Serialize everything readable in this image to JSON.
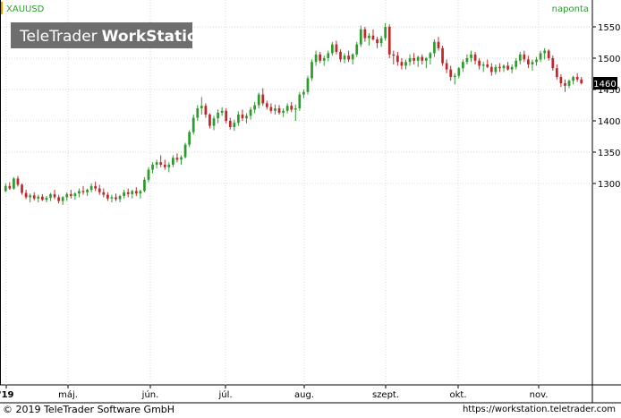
{
  "symbol": "XAUUSD",
  "period": "naponta",
  "logo": {
    "part1": "TeleTrader",
    "part2": "WorkStation"
  },
  "last_price_label": "1460",
  "footer": {
    "copyright": "© 2019 TeleTrader Software GmbH",
    "url": "https://workstation.teletrader.com"
  },
  "colors": {
    "up": "#2e9b2e",
    "down": "#c0282c",
    "accent": "#f0a500",
    "period": "#2e9b2e"
  },
  "chart_data": {
    "type": "candlestick",
    "ylim": [
      1265,
      1560
    ],
    "yticks": [
      1300,
      1350,
      1400,
      1450,
      1500,
      1550
    ],
    "xticks": [
      "'19",
      "máj.",
      "jún.",
      "júl.",
      "aug.",
      "szept.",
      "okt.",
      "nov."
    ],
    "ohlc": [
      [
        1288,
        1300,
        1286,
        1296
      ],
      [
        1296,
        1302,
        1290,
        1292
      ],
      [
        1292,
        1310,
        1290,
        1308
      ],
      [
        1308,
        1312,
        1295,
        1298
      ],
      [
        1298,
        1300,
        1282,
        1285
      ],
      [
        1285,
        1290,
        1275,
        1278
      ],
      [
        1278,
        1284,
        1270,
        1281
      ],
      [
        1281,
        1286,
        1273,
        1276
      ],
      [
        1276,
        1282,
        1270,
        1279
      ],
      [
        1279,
        1283,
        1272,
        1274
      ],
      [
        1274,
        1280,
        1270,
        1277
      ],
      [
        1277,
        1285,
        1272,
        1283
      ],
      [
        1283,
        1290,
        1275,
        1278
      ],
      [
        1278,
        1282,
        1268,
        1272
      ],
      [
        1272,
        1280,
        1266,
        1278
      ],
      [
        1278,
        1286,
        1272,
        1283
      ],
      [
        1283,
        1290,
        1276,
        1280
      ],
      [
        1280,
        1286,
        1274,
        1284
      ],
      [
        1284,
        1292,
        1278,
        1288
      ],
      [
        1288,
        1296,
        1282,
        1286
      ],
      [
        1286,
        1292,
        1280,
        1290
      ],
      [
        1290,
        1300,
        1286,
        1296
      ],
      [
        1296,
        1303,
        1288,
        1292
      ],
      [
        1292,
        1298,
        1282,
        1286
      ],
      [
        1286,
        1292,
        1278,
        1282
      ],
      [
        1282,
        1286,
        1272,
        1276
      ],
      [
        1276,
        1282,
        1270,
        1278
      ],
      [
        1278,
        1284,
        1272,
        1275
      ],
      [
        1275,
        1282,
        1270,
        1280
      ],
      [
        1280,
        1290,
        1276,
        1286
      ],
      [
        1286,
        1292,
        1278,
        1283
      ],
      [
        1283,
        1290,
        1276,
        1288
      ],
      [
        1288,
        1294,
        1280,
        1284
      ],
      [
        1284,
        1290,
        1276,
        1288
      ],
      [
        1288,
        1310,
        1286,
        1306
      ],
      [
        1306,
        1326,
        1302,
        1322
      ],
      [
        1322,
        1334,
        1316,
        1330
      ],
      [
        1330,
        1338,
        1324,
        1334
      ],
      [
        1334,
        1345,
        1326,
        1330
      ],
      [
        1330,
        1338,
        1322,
        1326
      ],
      [
        1326,
        1334,
        1318,
        1330
      ],
      [
        1330,
        1345,
        1326,
        1341
      ],
      [
        1341,
        1348,
        1334,
        1338
      ],
      [
        1338,
        1345,
        1330,
        1342
      ],
      [
        1342,
        1365,
        1340,
        1362
      ],
      [
        1362,
        1385,
        1358,
        1382
      ],
      [
        1382,
        1410,
        1378,
        1405
      ],
      [
        1405,
        1425,
        1400,
        1420
      ],
      [
        1420,
        1438,
        1410,
        1424
      ],
      [
        1424,
        1428,
        1405,
        1410
      ],
      [
        1410,
        1412,
        1388,
        1392
      ],
      [
        1392,
        1408,
        1385,
        1404
      ],
      [
        1404,
        1418,
        1396,
        1413
      ],
      [
        1413,
        1422,
        1408,
        1416
      ],
      [
        1416,
        1420,
        1396,
        1400
      ],
      [
        1400,
        1405,
        1386,
        1390
      ],
      [
        1390,
        1402,
        1384,
        1397
      ],
      [
        1397,
        1415,
        1392,
        1410
      ],
      [
        1410,
        1418,
        1400,
        1404
      ],
      [
        1404,
        1412,
        1396,
        1408
      ],
      [
        1408,
        1422,
        1402,
        1418
      ],
      [
        1418,
        1430,
        1412,
        1425
      ],
      [
        1425,
        1445,
        1420,
        1442
      ],
      [
        1442,
        1452,
        1424,
        1428
      ],
      [
        1428,
        1432,
        1418,
        1422
      ],
      [
        1422,
        1428,
        1412,
        1416
      ],
      [
        1416,
        1426,
        1410,
        1420
      ],
      [
        1420,
        1425,
        1410,
        1413
      ],
      [
        1413,
        1420,
        1406,
        1416
      ],
      [
        1416,
        1428,
        1412,
        1424
      ],
      [
        1424,
        1430,
        1414,
        1418
      ],
      [
        1418,
        1426,
        1400,
        1420
      ],
      [
        1420,
        1446,
        1416,
        1442
      ],
      [
        1442,
        1450,
        1436,
        1446
      ],
      [
        1446,
        1472,
        1442,
        1468
      ],
      [
        1468,
        1498,
        1464,
        1494
      ],
      [
        1494,
        1512,
        1488,
        1506
      ],
      [
        1506,
        1510,
        1492,
        1496
      ],
      [
        1496,
        1504,
        1488,
        1500
      ],
      [
        1500,
        1512,
        1495,
        1508
      ],
      [
        1508,
        1526,
        1504,
        1522
      ],
      [
        1522,
        1528,
        1506,
        1510
      ],
      [
        1510,
        1514,
        1494,
        1498
      ],
      [
        1498,
        1508,
        1492,
        1504
      ],
      [
        1504,
        1512,
        1494,
        1498
      ],
      [
        1498,
        1508,
        1490,
        1506
      ],
      [
        1506,
        1526,
        1502,
        1522
      ],
      [
        1522,
        1552,
        1518,
        1546
      ],
      [
        1546,
        1550,
        1526,
        1532
      ],
      [
        1532,
        1540,
        1520,
        1536
      ],
      [
        1536,
        1546,
        1528,
        1530
      ],
      [
        1530,
        1534,
        1516,
        1524
      ],
      [
        1524,
        1536,
        1518,
        1532
      ],
      [
        1532,
        1556,
        1528,
        1550
      ],
      [
        1550,
        1554,
        1500,
        1506
      ],
      [
        1506,
        1512,
        1490,
        1504
      ],
      [
        1504,
        1510,
        1488,
        1494
      ],
      [
        1494,
        1500,
        1482,
        1488
      ],
      [
        1488,
        1498,
        1482,
        1494
      ],
      [
        1494,
        1506,
        1488,
        1500
      ],
      [
        1500,
        1508,
        1490,
        1496
      ],
      [
        1496,
        1504,
        1486,
        1502
      ],
      [
        1502,
        1506,
        1490,
        1496
      ],
      [
        1496,
        1502,
        1484,
        1500
      ],
      [
        1500,
        1510,
        1490,
        1508
      ],
      [
        1508,
        1530,
        1502,
        1526
      ],
      [
        1526,
        1534,
        1512,
        1516
      ],
      [
        1516,
        1520,
        1488,
        1492
      ],
      [
        1492,
        1498,
        1476,
        1482
      ],
      [
        1482,
        1488,
        1464,
        1470
      ],
      [
        1470,
        1476,
        1458,
        1472
      ],
      [
        1472,
        1486,
        1468,
        1484
      ],
      [
        1484,
        1498,
        1478,
        1494
      ],
      [
        1494,
        1506,
        1490,
        1500
      ],
      [
        1500,
        1512,
        1494,
        1506
      ],
      [
        1506,
        1510,
        1490,
        1496
      ],
      [
        1496,
        1500,
        1482,
        1488
      ],
      [
        1488,
        1494,
        1478,
        1490
      ],
      [
        1490,
        1498,
        1484,
        1486
      ],
      [
        1486,
        1492,
        1472,
        1478
      ],
      [
        1478,
        1490,
        1474,
        1486
      ],
      [
        1486,
        1492,
        1478,
        1484
      ],
      [
        1484,
        1490,
        1478,
        1488
      ],
      [
        1488,
        1494,
        1480,
        1482
      ],
      [
        1482,
        1490,
        1476,
        1486
      ],
      [
        1486,
        1500,
        1482,
        1496
      ],
      [
        1496,
        1510,
        1490,
        1506
      ],
      [
        1506,
        1512,
        1494,
        1498
      ],
      [
        1498,
        1504,
        1484,
        1490
      ],
      [
        1490,
        1498,
        1480,
        1494
      ],
      [
        1494,
        1502,
        1488,
        1498
      ],
      [
        1498,
        1512,
        1494,
        1508
      ],
      [
        1508,
        1516,
        1498,
        1512
      ],
      [
        1512,
        1514,
        1496,
        1500
      ],
      [
        1500,
        1504,
        1480,
        1484
      ],
      [
        1484,
        1490,
        1466,
        1470
      ],
      [
        1470,
        1474,
        1454,
        1460
      ],
      [
        1460,
        1466,
        1446,
        1456
      ],
      [
        1456,
        1466,
        1452,
        1464
      ],
      [
        1464,
        1472,
        1458,
        1470
      ],
      [
        1470,
        1476,
        1462,
        1466
      ],
      [
        1466,
        1470,
        1458,
        1460
      ]
    ]
  }
}
